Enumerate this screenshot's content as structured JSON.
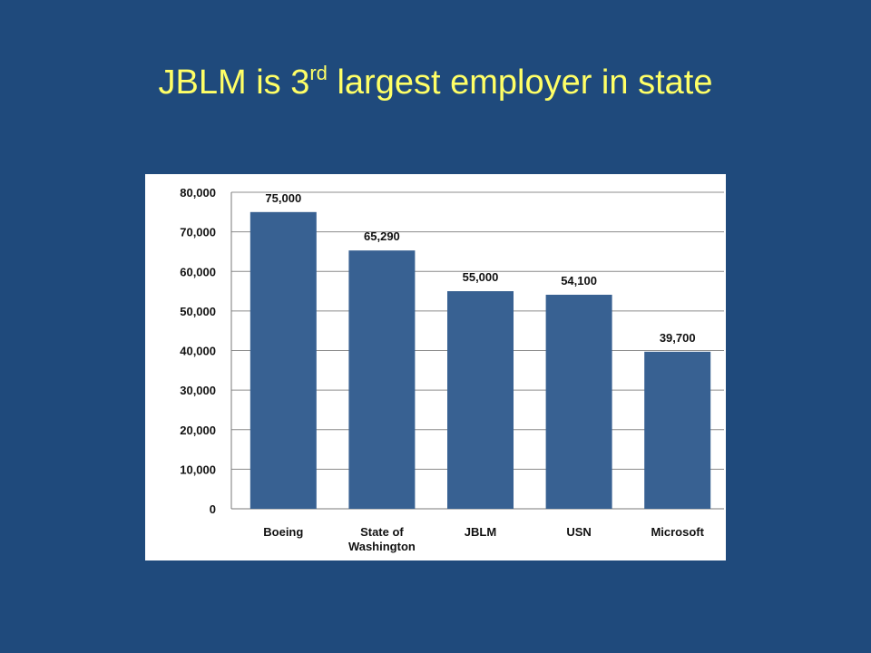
{
  "slide": {
    "title_prefix": "JBLM is 3",
    "title_superscript": "rd",
    "title_suffix": " largest employer in state"
  },
  "chart_data": {
    "type": "bar",
    "categories": [
      [
        "Boeing"
      ],
      [
        "State of",
        "Washington"
      ],
      [
        "JBLM"
      ],
      [
        "USN"
      ],
      [
        "Microsoft"
      ]
    ],
    "values": [
      75000,
      65290,
      55000,
      54100,
      39700
    ],
    "data_labels": [
      "75,000",
      "65,290",
      "55,000",
      "54,100",
      "39,700"
    ],
    "yticks": [
      0,
      10000,
      20000,
      30000,
      40000,
      50000,
      60000,
      70000,
      80000
    ],
    "ytick_labels": [
      "0",
      "10,000",
      "20,000",
      "30,000",
      "40,000",
      "50,000",
      "60,000",
      "70,000",
      "80,000"
    ],
    "ylim": [
      0,
      80000
    ],
    "grid": true,
    "legend": false,
    "title": "",
    "xlabel": "",
    "ylabel": "",
    "bar_color": "#386192",
    "grid_color": "#8c8c8c"
  }
}
